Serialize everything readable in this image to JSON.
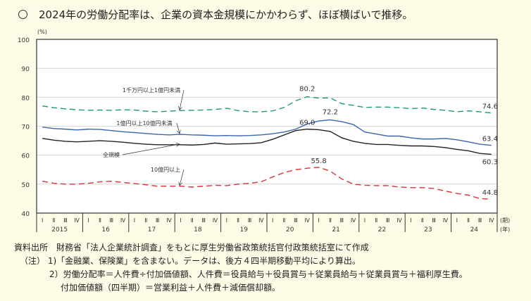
{
  "title": "2024年の労働分配率は、企業の資本金規模にかかわらず、ほぼ横ばいで推移。",
  "chart_data": {
    "type": "line",
    "ylabel": "(%)",
    "ylim": [
      40,
      100
    ],
    "yticks": [
      "40",
      "50",
      "60",
      "70",
      "80",
      "90",
      "100"
    ],
    "quarter_labels": [
      "Ⅰ",
      "Ⅱ",
      "Ⅲ",
      "Ⅳ"
    ],
    "quarter_axis_unit": "(期)",
    "year_axis_unit": "(年)",
    "years": [
      "2015",
      "16",
      "17",
      "18",
      "19",
      "20",
      "21",
      "22",
      "23",
      "24"
    ],
    "grid": true,
    "series": [
      {
        "name": "1千万円以上1億円未満",
        "color": "#1a9e6e",
        "dash": true,
        "values": [
          77,
          76.4,
          76,
          75.7,
          75.5,
          75.6,
          75.5,
          75.7,
          75.6,
          75.2,
          75,
          75.2,
          75.4,
          75.5,
          75.6,
          75.8,
          76.2,
          75.4,
          75,
          75,
          75.3,
          76.5,
          78.8,
          80.2,
          79.7,
          79.8,
          77.8,
          77.2,
          76.5,
          76.6,
          76.6,
          76.4,
          76.1,
          76.3,
          75.8,
          75.5,
          75,
          75.3,
          75,
          74.6
        ],
        "end_label": "74.6",
        "peak_label": "80.2"
      },
      {
        "name": "1億円以上10億円未満",
        "color": "#3a66b0",
        "dash": false,
        "values": [
          69.7,
          69.2,
          69,
          68.7,
          69,
          68.9,
          68.5,
          68.1,
          67.8,
          67.5,
          67.2,
          67,
          67.2,
          67,
          66.9,
          66.7,
          66.8,
          66.7,
          66.8,
          67,
          67.4,
          68,
          69,
          70.8,
          71.8,
          72.2,
          71.6,
          70.6,
          68,
          67.3,
          66.6,
          66.6,
          66,
          65.6,
          65.6,
          65.8,
          65.3,
          64.6,
          63.8,
          63.4
        ],
        "end_label": "63.4",
        "peak_label": "72.2"
      },
      {
        "name": "全規模",
        "color": "#222222",
        "dash": false,
        "values": [
          65.8,
          65.2,
          64.8,
          64.6,
          64.8,
          65,
          64.8,
          64.5,
          64.1,
          63.8,
          63.6,
          63.6,
          63.6,
          63.5,
          63.7,
          64.2,
          63.8,
          63.9,
          64,
          64.3,
          65.5,
          67,
          68.5,
          69,
          68.8,
          68.2,
          66,
          64.8,
          64.1,
          63.7,
          63.7,
          63.4,
          63.2,
          63.2,
          63,
          62.6,
          62,
          61.5,
          60.6,
          60.3
        ],
        "end_label": "60.3",
        "peak_label": "69.0"
      },
      {
        "name": "10億円以上",
        "color": "#d8323a",
        "dash": true,
        "values": [
          51,
          50.3,
          50,
          50,
          50.3,
          50.8,
          51,
          50.6,
          50.2,
          49.8,
          49.3,
          49.3,
          49.3,
          49,
          49.3,
          49.6,
          49.5,
          50,
          50.3,
          50.8,
          52.5,
          54,
          55,
          55.5,
          55.8,
          54.5,
          51.8,
          50,
          49.6,
          49.5,
          49.5,
          49,
          48.8,
          48.8,
          48.5,
          47.6,
          46.8,
          46.2,
          45,
          44.8
        ],
        "end_label": "44.8",
        "peak_label": "55.8"
      }
    ]
  },
  "notes": {
    "source_label": "資料出所",
    "source_text": "財務省「法人企業統計調査」をもとに厚生労働省政策統括官付政策統括室にて作成",
    "note_label": "（注）",
    "note1": "1)「金融業、保険業」を含まない。データは、後方４四半期移動平均により算出。",
    "note2": "2）労働分配率＝人件費÷付加価値額、人件費＝役員給与＋役員賞与＋従業員給与＋従業員賞与＋福利厚生費。",
    "note3": "付加価値額（四半期）＝営業利益＋人件費＋減価償却額。"
  }
}
